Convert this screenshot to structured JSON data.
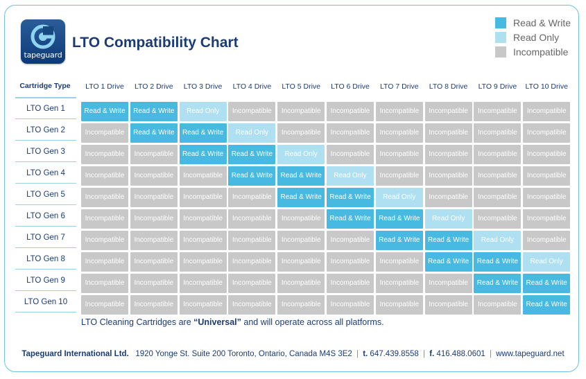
{
  "brand": {
    "logo_text": "tapeguard"
  },
  "title": "LTO Compatibility Chart",
  "colors": {
    "read_write": "#48b9e1",
    "read_only": "#aee0f2",
    "incompatible": "#c8c8c8",
    "navy": "#1a3b73"
  },
  "legend": [
    {
      "label": "Read & Write",
      "status": "rw"
    },
    {
      "label": "Read Only",
      "status": "ro"
    },
    {
      "label": "Incompatible",
      "status": "in"
    }
  ],
  "chart_data": {
    "type": "table",
    "title": "LTO Compatibility Chart",
    "corner_label": "Cartridge Type",
    "columns": [
      "LTO 1 Drive",
      "LTO 2 Drive",
      "LTO 3 Drive",
      "LTO 4 Drive",
      "LTO 5 Drive",
      "LTO 6 Drive",
      "LTO 7 Drive",
      "LTO 8 Drive",
      "LTO 9 Drive",
      "LTO 10 Drive"
    ],
    "rows": [
      "LTO Gen 1",
      "LTO Gen 2",
      "LTO Gen 3",
      "LTO Gen 4",
      "LTO Gen 5",
      "LTO Gen 6",
      "LTO Gen 7",
      "LTO Gen 8",
      "LTO Gen 9",
      "LTO Gen 10"
    ],
    "status_labels": {
      "rw": "Read & Write",
      "ro": "Read Only",
      "in": "Incompatible"
    },
    "matrix": [
      [
        "rw",
        "rw",
        "ro",
        "in",
        "in",
        "in",
        "in",
        "in",
        "in",
        "in"
      ],
      [
        "in",
        "rw",
        "rw",
        "ro",
        "in",
        "in",
        "in",
        "in",
        "in",
        "in"
      ],
      [
        "in",
        "in",
        "rw",
        "rw",
        "ro",
        "in",
        "in",
        "in",
        "in",
        "in"
      ],
      [
        "in",
        "in",
        "in",
        "rw",
        "rw",
        "ro",
        "in",
        "in",
        "in",
        "in"
      ],
      [
        "in",
        "in",
        "in",
        "in",
        "rw",
        "rw",
        "ro",
        "in",
        "in",
        "in"
      ],
      [
        "in",
        "in",
        "in",
        "in",
        "in",
        "rw",
        "rw",
        "ro",
        "in",
        "in"
      ],
      [
        "in",
        "in",
        "in",
        "in",
        "in",
        "in",
        "rw",
        "rw",
        "ro",
        "in"
      ],
      [
        "in",
        "in",
        "in",
        "in",
        "in",
        "in",
        "in",
        "rw",
        "rw",
        "ro"
      ],
      [
        "in",
        "in",
        "in",
        "in",
        "in",
        "in",
        "in",
        "in",
        "rw",
        "rw"
      ],
      [
        "in",
        "in",
        "in",
        "in",
        "in",
        "in",
        "in",
        "in",
        "in",
        "rw"
      ]
    ]
  },
  "note": {
    "prefix": "LTO Cleaning Cartridges are ",
    "emphasis": "“Universal”",
    "suffix": " and will operate across all platforms."
  },
  "footer": {
    "company": "Tapeguard International Ltd.",
    "address": "1920 Yonge St. Suite 200  Toronto, Ontario, Canada  M4S 3E2",
    "phone_label": "t.",
    "phone": "647.439.8558",
    "fax_label": "f.",
    "fax": "416.488.0601",
    "website": "www.tapeguard.net"
  }
}
